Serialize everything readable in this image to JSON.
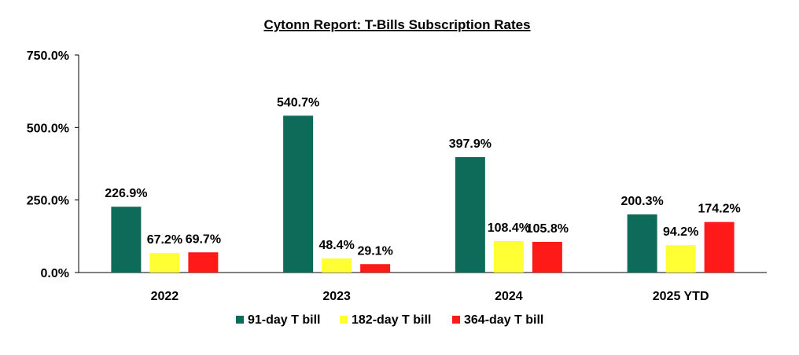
{
  "chart_data": {
    "type": "bar",
    "title": "Cytonn Report: T-Bills Subscription Rates",
    "xlabel": "",
    "ylabel": "",
    "ylim": [
      0,
      750
    ],
    "yticks": [
      0,
      250,
      500,
      750
    ],
    "ytick_labels": [
      "0.0%",
      "250.0%",
      "500.0%",
      "750.0%"
    ],
    "grid": false,
    "legend_position": "bottom",
    "categories": [
      "2022",
      "2023",
      "2024",
      "2025 YTD"
    ],
    "series": [
      {
        "name": "91-day T bill",
        "color": "#0e6b5a",
        "values": [
          226.9,
          540.7,
          397.9,
          200.3
        ],
        "labels": [
          "226.9%",
          "540.7%",
          "397.9%",
          "200.3%"
        ]
      },
      {
        "name": "182-day T bill",
        "color": "#ffff33",
        "values": [
          67.2,
          48.4,
          108.4,
          94.2
        ],
        "labels": [
          "67.2%",
          "48.4%",
          "108.4%",
          "94.2%"
        ]
      },
      {
        "name": "364-day T bill",
        "color": "#ff1a1a",
        "values": [
          69.7,
          29.1,
          105.8,
          174.2
        ],
        "labels": [
          "69.7%",
          "29.1%",
          "105.8%",
          "174.2%"
        ]
      }
    ]
  }
}
